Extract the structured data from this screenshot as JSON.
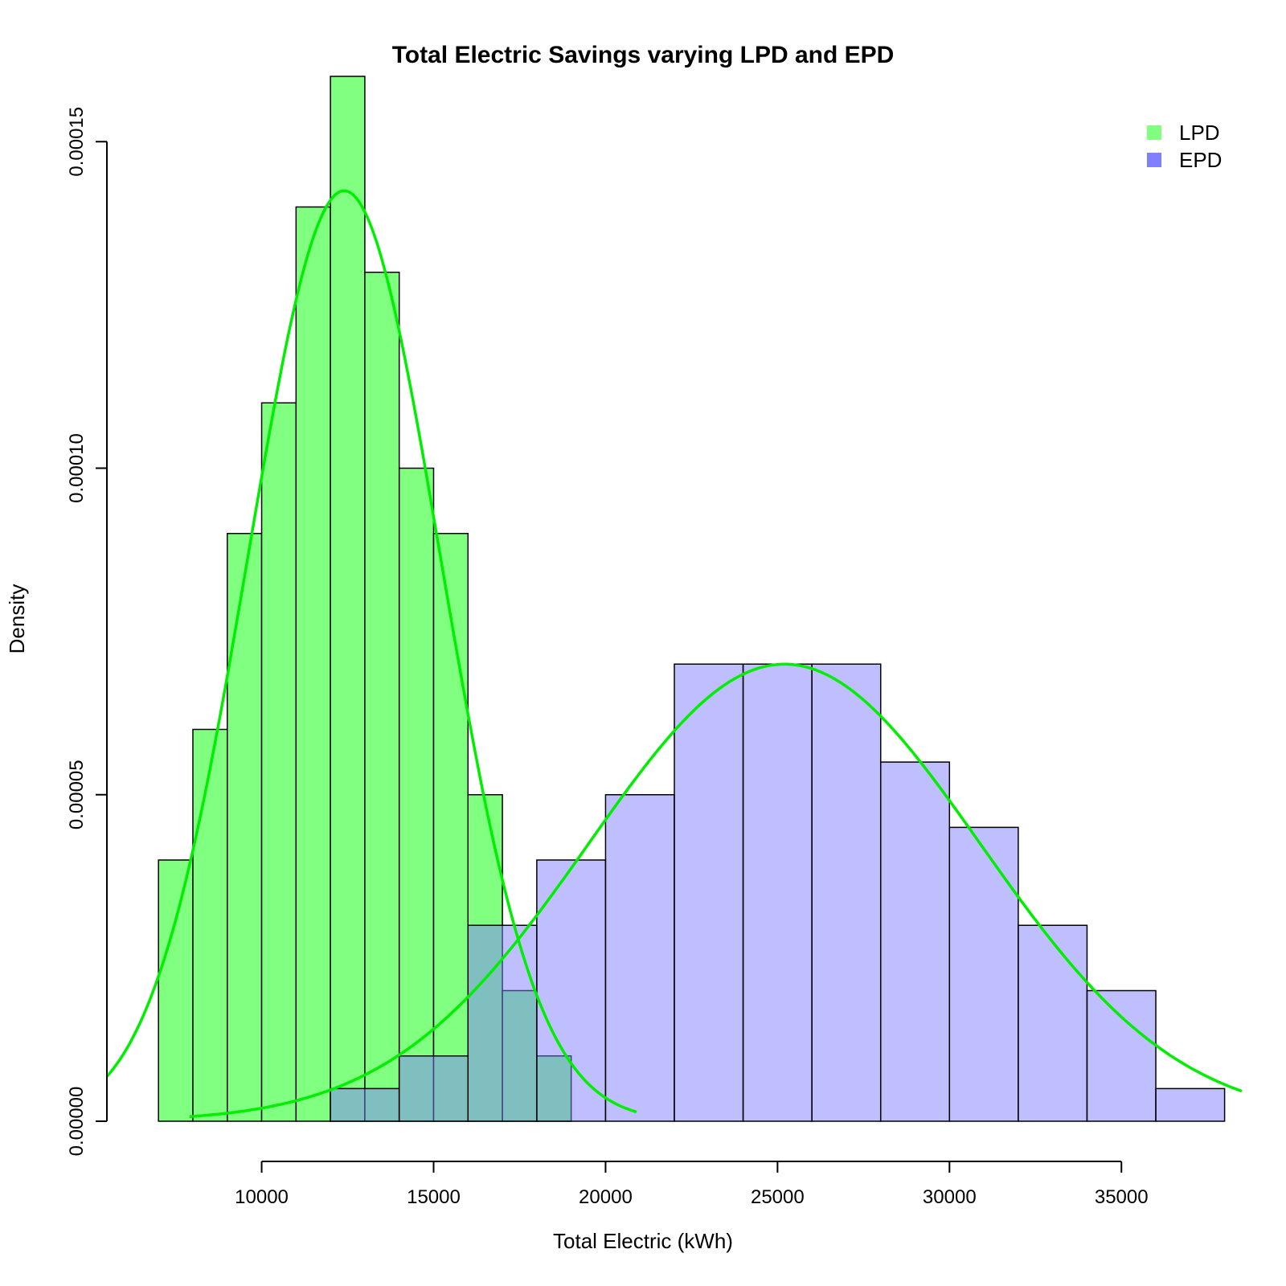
{
  "chart_data": {
    "type": "histogram",
    "title": "Total Electric Savings varying LPD and EPD",
    "xlabel": "Total Electric (kWh)",
    "ylabel": "Density",
    "xlim": [
      5500,
      38500
    ],
    "ylim": [
      0,
      0.000152
    ],
    "x_ticks": [
      10000,
      15000,
      20000,
      25000,
      30000,
      35000
    ],
    "x_tick_labels": [
      "10000",
      "15000",
      "20000",
      "25000",
      "30000",
      "35000"
    ],
    "y_ticks": [
      0,
      5e-05,
      0.0001,
      0.00015
    ],
    "y_tick_labels": [
      "0.00000",
      "0.00005",
      "0.00010",
      "0.00015"
    ],
    "legend_position": "top-right",
    "series": [
      {
        "name": "LPD",
        "color": "#80FF80",
        "bins": [
          {
            "start": 7000,
            "end": 8000,
            "density": 4e-05
          },
          {
            "start": 8000,
            "end": 9000,
            "density": 6e-05
          },
          {
            "start": 9000,
            "end": 10000,
            "density": 9e-05
          },
          {
            "start": 10000,
            "end": 11000,
            "density": 0.00011
          },
          {
            "start": 11000,
            "end": 12000,
            "density": 0.00014
          },
          {
            "start": 12000,
            "end": 13000,
            "density": 0.00016
          },
          {
            "start": 13000,
            "end": 14000,
            "density": 0.00013
          },
          {
            "start": 14000,
            "end": 15000,
            "density": 0.0001
          },
          {
            "start": 15000,
            "end": 16000,
            "density": 9e-05
          },
          {
            "start": 16000,
            "end": 17000,
            "density": 5e-05
          },
          {
            "start": 17000,
            "end": 18000,
            "density": 2e-05
          },
          {
            "start": 18000,
            "end": 19000,
            "density": 1e-05
          }
        ],
        "curve": {
          "type": "normal",
          "mean": 12400,
          "sd": 2800,
          "color": "#00EE00",
          "x_range": [
            5500,
            20900
          ]
        }
      },
      {
        "name": "EPD",
        "color": "#8080FF",
        "bins": [
          {
            "start": 12000,
            "end": 14000,
            "density": 5e-06
          },
          {
            "start": 14000,
            "end": 16000,
            "density": 1e-05
          },
          {
            "start": 16000,
            "end": 18000,
            "density": 3e-05
          },
          {
            "start": 18000,
            "end": 20000,
            "density": 4e-05
          },
          {
            "start": 20000,
            "end": 22000,
            "density": 5e-05
          },
          {
            "start": 22000,
            "end": 24000,
            "density": 7e-05
          },
          {
            "start": 24000,
            "end": 26000,
            "density": 7e-05
          },
          {
            "start": 26000,
            "end": 28000,
            "density": 7e-05
          },
          {
            "start": 28000,
            "end": 30000,
            "density": 5.5e-05
          },
          {
            "start": 30000,
            "end": 32000,
            "density": 4.5e-05
          },
          {
            "start": 32000,
            "end": 34000,
            "density": 3e-05
          },
          {
            "start": 34000,
            "end": 36000,
            "density": 2e-05
          },
          {
            "start": 36000,
            "end": 38000,
            "density": 5e-06
          }
        ],
        "curve": {
          "type": "normal",
          "mean": 25200,
          "sd": 5700,
          "color": "#00EE00",
          "x_range": [
            7900,
            38500
          ]
        }
      }
    ]
  }
}
